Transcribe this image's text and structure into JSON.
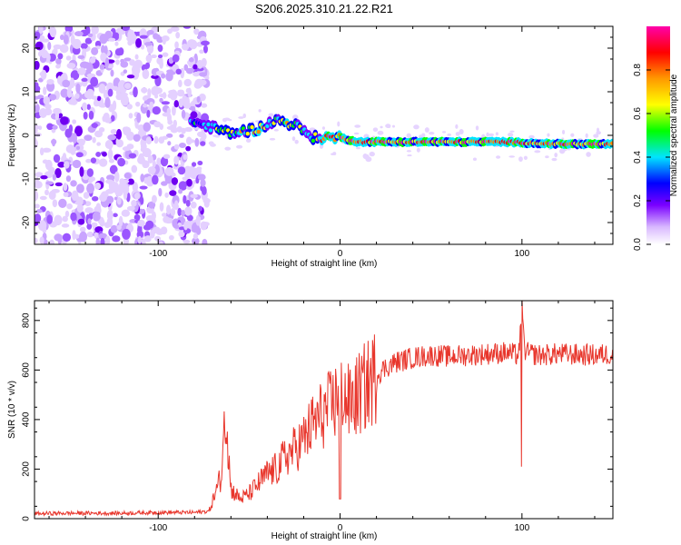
{
  "title": "S206.2025.310.21.22.R21",
  "chart_data": [
    {
      "type": "heatmap",
      "xlabel": "Height of straight line (km)",
      "ylabel": "Frequency (Hz)",
      "xlim": [
        -168,
        150
      ],
      "ylim": [
        -25,
        25
      ],
      "xticks": [
        -100,
        0,
        100
      ],
      "yticks": [
        -20,
        -10,
        0,
        10,
        20
      ],
      "ridge": [
        {
          "x": -80,
          "f": 3
        },
        {
          "x": -60,
          "f": 0.5
        },
        {
          "x": -45,
          "f": 1.5
        },
        {
          "x": -35,
          "f": 3.5
        },
        {
          "x": -25,
          "f": 2.5
        },
        {
          "x": -15,
          "f": -0.5
        },
        {
          "x": 0,
          "f": -0.5
        },
        {
          "x": 10,
          "f": -1.5
        },
        {
          "x": 50,
          "f": -1.5
        },
        {
          "x": 90,
          "f": -1.5
        },
        {
          "x": 120,
          "f": -2
        },
        {
          "x": 150,
          "f": -2
        }
      ],
      "colorbar": {
        "label": "Normalized spectral amplitude",
        "ticks": [
          0.0,
          0.2,
          0.4,
          0.6,
          0.8
        ],
        "range": [
          0,
          1
        ],
        "colors": [
          "#ffffff",
          "#cc99ff",
          "#7a00ff",
          "#0000ff",
          "#00e5ff",
          "#00ff00",
          "#ffff00",
          "#ff8800",
          "#ff0000",
          "#ff00aa"
        ]
      }
    },
    {
      "type": "line",
      "xlabel": "Height of straight line (km)",
      "ylabel": "SNR (10 * v/v)",
      "xlim": [
        -168,
        150
      ],
      "ylim": [
        0,
        880
      ],
      "xticks": [
        -100,
        0,
        100
      ],
      "yticks": [
        0,
        200,
        400,
        600,
        800
      ],
      "color": "#e8362c",
      "series": [
        {
          "name": "SNR",
          "x": [
            -168,
            -150,
            -120,
            -100,
            -80,
            -72,
            -65,
            -63,
            -60,
            -55,
            -50,
            -45,
            -40,
            -35,
            -30,
            -25,
            -20,
            -15,
            -10,
            -5,
            -2,
            0,
            2,
            5,
            10,
            15,
            20,
            25,
            30,
            40,
            50,
            60,
            70,
            80,
            90,
            95,
            98,
            100,
            102,
            105,
            110,
            120,
            130,
            140,
            150
          ],
          "y": [
            20,
            22,
            22,
            25,
            25,
            30,
            180,
            440,
            120,
            80,
            100,
            140,
            180,
            200,
            250,
            280,
            320,
            380,
            420,
            450,
            480,
            600,
            500,
            460,
            500,
            540,
            580,
            610,
            630,
            650,
            660,
            655,
            660,
            665,
            670,
            665,
            660,
            800,
            670,
            665,
            660,
            665,
            662,
            660,
            665
          ]
        }
      ],
      "annotations": [
        {
          "x": 0,
          "y": 750,
          "note": "spike"
        },
        {
          "x": 0,
          "y": 80,
          "note": "dip"
        },
        {
          "x": 100,
          "y": 880,
          "note": "spike"
        },
        {
          "x": 100,
          "y": 210,
          "note": "dip"
        }
      ]
    }
  ]
}
